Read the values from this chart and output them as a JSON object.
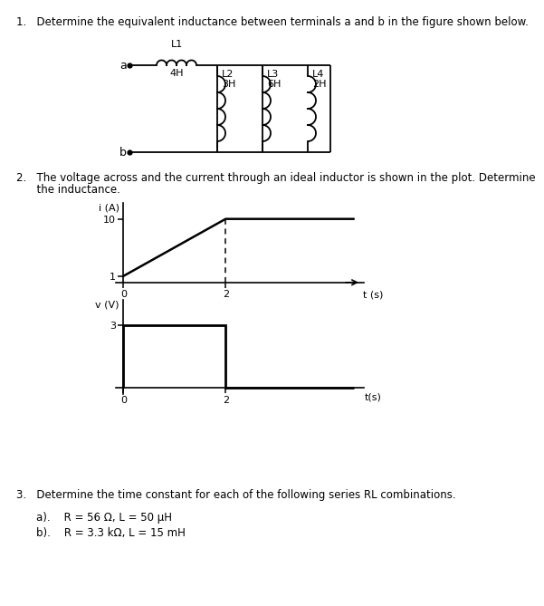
{
  "title1": "1.   Determine the equivalent inductance between terminals a and b in the figure shown below.",
  "title2_line1": "2.   The voltage across and the current through an ideal inductor is shown in the plot. Determine",
  "title2_line2": "      the inductance.",
  "title3": "3.   Determine the time constant for each of the following series RL combinations.",
  "sub3a": "a).    R = 56 Ω, L = 50 μH",
  "sub3b": "b).    R = 3.3 kΩ, L = 15 mH",
  "terminal_a": "a",
  "terminal_b": "b",
  "L1_label": "L1",
  "L1_val": "4H",
  "L2_label": "L2",
  "L2_val": "3H",
  "L3_label": "L3",
  "L3_val": "6H",
  "L4_label": "L4",
  "L4_val": "2H",
  "bg_color": "#ffffff"
}
